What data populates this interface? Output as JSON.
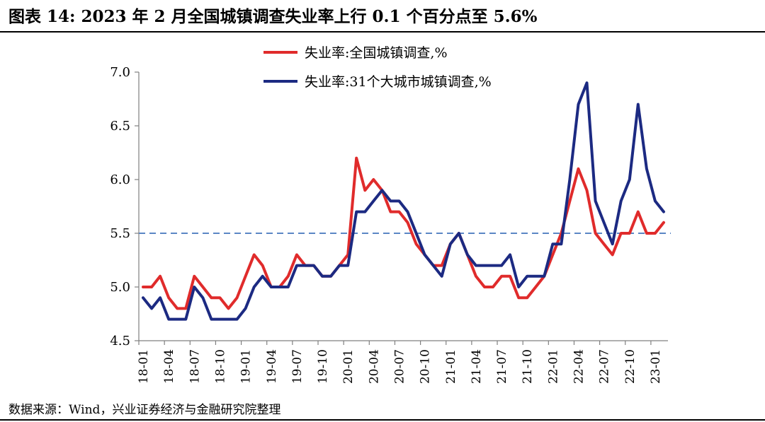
{
  "title": "图表 14:  2023 年 2 月全国城镇调查失业率上行 0.1 个百分点至 5.6%",
  "source": "数据来源：Wind，兴业证券经济与金融研究院整理",
  "colors": {
    "national": "#e02b2b",
    "city31": "#1c2a82",
    "reference": "#5b86c5",
    "axis": "#808080"
  },
  "chart_data": {
    "type": "line",
    "title": "",
    "xlabel": "",
    "ylabel": "",
    "ylim": [
      4.5,
      7.0
    ],
    "yticks": [
      "4.5",
      "5.0",
      "5.5",
      "6.0",
      "6.5",
      "7.0"
    ],
    "xticks": [
      "18-01",
      "18-04",
      "18-07",
      "18-10",
      "19-01",
      "19-04",
      "19-07",
      "19-10",
      "20-01",
      "20-04",
      "20-07",
      "20-10",
      "21-01",
      "21-04",
      "21-07",
      "21-10",
      "22-01",
      "22-04",
      "22-07",
      "22-10",
      "23-01"
    ],
    "x": [
      "18-01",
      "18-02",
      "18-03",
      "18-04",
      "18-05",
      "18-06",
      "18-07",
      "18-08",
      "18-09",
      "18-10",
      "18-11",
      "18-12",
      "19-01",
      "19-02",
      "19-03",
      "19-04",
      "19-05",
      "19-06",
      "19-07",
      "19-08",
      "19-09",
      "19-10",
      "19-11",
      "19-12",
      "20-01",
      "20-02",
      "20-03",
      "20-04",
      "20-05",
      "20-06",
      "20-07",
      "20-08",
      "20-09",
      "20-10",
      "20-11",
      "20-12",
      "21-01",
      "21-02",
      "21-03",
      "21-04",
      "21-05",
      "21-06",
      "21-07",
      "21-08",
      "21-09",
      "21-10",
      "21-11",
      "21-12",
      "22-01",
      "22-02",
      "22-03",
      "22-04",
      "22-05",
      "22-06",
      "22-07",
      "22-08",
      "22-09",
      "22-10",
      "22-11",
      "22-12",
      "23-01",
      "23-02"
    ],
    "series": [
      {
        "name": "失业率:全国城镇调查,%",
        "color": "#e02b2b",
        "values": [
          5.0,
          5.0,
          5.1,
          4.9,
          4.8,
          4.8,
          5.1,
          5.0,
          4.9,
          4.9,
          4.8,
          4.9,
          5.1,
          5.3,
          5.2,
          5.0,
          5.0,
          5.1,
          5.3,
          5.2,
          5.2,
          5.1,
          5.1,
          5.2,
          5.3,
          6.2,
          5.9,
          6.0,
          5.9,
          5.7,
          5.7,
          5.6,
          5.4,
          5.3,
          5.2,
          5.2,
          5.4,
          5.5,
          5.3,
          5.1,
          5.0,
          5.0,
          5.1,
          5.1,
          4.9,
          4.9,
          5.0,
          5.1,
          5.3,
          5.5,
          5.8,
          6.1,
          5.9,
          5.5,
          5.4,
          5.3,
          5.5,
          5.5,
          5.7,
          5.5,
          5.5,
          5.6
        ]
      },
      {
        "name": "失业率:31个大城市城镇调查,%",
        "color": "#1c2a82",
        "values": [
          4.9,
          4.8,
          4.9,
          4.7,
          4.7,
          4.7,
          5.0,
          4.9,
          4.7,
          4.7,
          4.7,
          4.7,
          4.8,
          5.0,
          5.1,
          5.0,
          5.0,
          5.0,
          5.2,
          5.2,
          5.2,
          5.1,
          5.1,
          5.2,
          5.2,
          5.7,
          5.7,
          5.8,
          5.9,
          5.8,
          5.8,
          5.7,
          5.5,
          5.3,
          5.2,
          5.1,
          5.4,
          5.5,
          5.3,
          5.2,
          5.2,
          5.2,
          5.2,
          5.3,
          5.0,
          5.1,
          5.1,
          5.1,
          5.4,
          5.4,
          6.0,
          6.7,
          6.9,
          5.8,
          5.6,
          5.4,
          5.8,
          6.0,
          6.7,
          6.1,
          5.8,
          5.7
        ]
      }
    ],
    "reference_line": {
      "value": 5.5,
      "style": "dashed"
    },
    "legend": {
      "position": "top-center",
      "entries": [
        "失业率:全国城镇调查,%",
        "失业率:31个大城市城镇调查,%"
      ]
    },
    "grid": false
  }
}
